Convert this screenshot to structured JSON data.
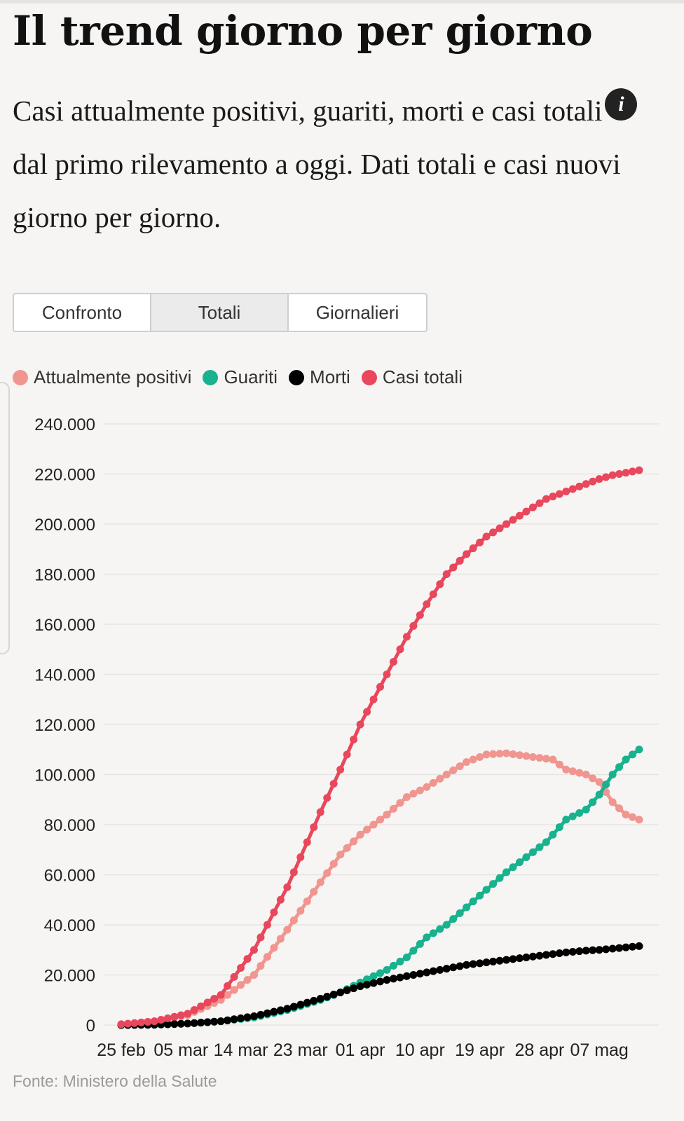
{
  "header": {
    "title": "Il trend giorno per giorno",
    "subtitle_part1": "Casi attualmente positivi, guariti, morti e casi totali",
    "info_glyph": "i",
    "subtitle_part2": " dal primo rilevamento a oggi. Dati totali e casi nuovi giorno per giorno."
  },
  "tabs": [
    {
      "label": "Confronto",
      "active": false
    },
    {
      "label": "Totali",
      "active": true
    },
    {
      "label": "Giornalieri",
      "active": false
    }
  ],
  "legend": [
    {
      "label": "Attualmente positivi",
      "color": "#f0958f"
    },
    {
      "label": "Guariti",
      "color": "#18b28e"
    },
    {
      "label": "Morti",
      "color": "#000000"
    },
    {
      "label": "Casi totali",
      "color": "#e8475c"
    }
  ],
  "source": "Fonte: Ministero della Salute",
  "chart_data": {
    "type": "line",
    "x_tick_labels": [
      "25 feb",
      "05 mar",
      "14 mar",
      "23 mar",
      "01 apr",
      "10 apr",
      "19 apr",
      "28 apr",
      "07 mag"
    ],
    "x_tick_day_index": [
      0,
      9,
      18,
      27,
      36,
      45,
      54,
      63,
      72
    ],
    "y_tick_labels": [
      "0",
      "20.000",
      "40.000",
      "60.000",
      "80.000",
      "100.000",
      "120.000",
      "140.000",
      "160.000",
      "180.000",
      "200.000",
      "220.000",
      "240.000"
    ],
    "ylim": [
      0,
      240000
    ],
    "grid": true,
    "legend_position": "top-left",
    "series": [
      {
        "name": "Attualmente positivi",
        "color": "#f0958f",
        "anchors": [
          [
            0,
            300
          ],
          [
            5,
            1500
          ],
          [
            10,
            4000
          ],
          [
            15,
            10000
          ],
          [
            20,
            20000
          ],
          [
            25,
            38000
          ],
          [
            30,
            57000
          ],
          [
            33,
            68000
          ],
          [
            36,
            76000
          ],
          [
            40,
            84000
          ],
          [
            43,
            91000
          ],
          [
            46,
            95000
          ],
          [
            49,
            100000
          ],
          [
            52,
            105000
          ],
          [
            55,
            108000
          ],
          [
            58,
            108500
          ],
          [
            62,
            107000
          ],
          [
            65,
            106000
          ],
          [
            67,
            102000
          ],
          [
            70,
            100000
          ],
          [
            72,
            97000
          ],
          [
            74,
            89000
          ],
          [
            76,
            84000
          ],
          [
            78,
            82000
          ]
        ]
      },
      {
        "name": "Guariti",
        "color": "#18b28e",
        "anchors": [
          [
            0,
            0
          ],
          [
            5,
            100
          ],
          [
            10,
            600
          ],
          [
            15,
            1500
          ],
          [
            20,
            3000
          ],
          [
            25,
            6000
          ],
          [
            30,
            10000
          ],
          [
            33,
            13000
          ],
          [
            36,
            17000
          ],
          [
            40,
            22000
          ],
          [
            43,
            27000
          ],
          [
            46,
            35000
          ],
          [
            49,
            40000
          ],
          [
            52,
            47000
          ],
          [
            55,
            54000
          ],
          [
            58,
            61000
          ],
          [
            61,
            67000
          ],
          [
            64,
            73000
          ],
          [
            67,
            82000
          ],
          [
            70,
            86000
          ],
          [
            72,
            92000
          ],
          [
            74,
            100000
          ],
          [
            76,
            106000
          ],
          [
            78,
            110000
          ]
        ]
      },
      {
        "name": "Morti",
        "color": "#000000",
        "anchors": [
          [
            0,
            0
          ],
          [
            5,
            100
          ],
          [
            10,
            600
          ],
          [
            15,
            1500
          ],
          [
            20,
            3500
          ],
          [
            25,
            6500
          ],
          [
            30,
            10500
          ],
          [
            33,
            13000
          ],
          [
            36,
            15500
          ],
          [
            40,
            18000
          ],
          [
            43,
            19500
          ],
          [
            46,
            21000
          ],
          [
            49,
            22500
          ],
          [
            52,
            24000
          ],
          [
            55,
            25000
          ],
          [
            58,
            26000
          ],
          [
            61,
            27000
          ],
          [
            64,
            28000
          ],
          [
            67,
            29000
          ],
          [
            70,
            29700
          ],
          [
            72,
            30000
          ],
          [
            74,
            30500
          ],
          [
            76,
            31000
          ],
          [
            78,
            31500
          ]
        ]
      },
      {
        "name": "Casi totali",
        "color": "#e8475c",
        "anchors": [
          [
            0,
            300
          ],
          [
            5,
            1500
          ],
          [
            10,
            4500
          ],
          [
            15,
            12000
          ],
          [
            20,
            30000
          ],
          [
            25,
            55000
          ],
          [
            30,
            85000
          ],
          [
            33,
            102000
          ],
          [
            36,
            120000
          ],
          [
            40,
            140000
          ],
          [
            43,
            155000
          ],
          [
            46,
            168000
          ],
          [
            49,
            180000
          ],
          [
            52,
            188000
          ],
          [
            55,
            195000
          ],
          [
            58,
            200000
          ],
          [
            61,
            205000
          ],
          [
            64,
            210000
          ],
          [
            67,
            213000
          ],
          [
            70,
            216000
          ],
          [
            72,
            218000
          ],
          [
            74,
            219500
          ],
          [
            76,
            220500
          ],
          [
            78,
            221500
          ]
        ]
      }
    ]
  }
}
